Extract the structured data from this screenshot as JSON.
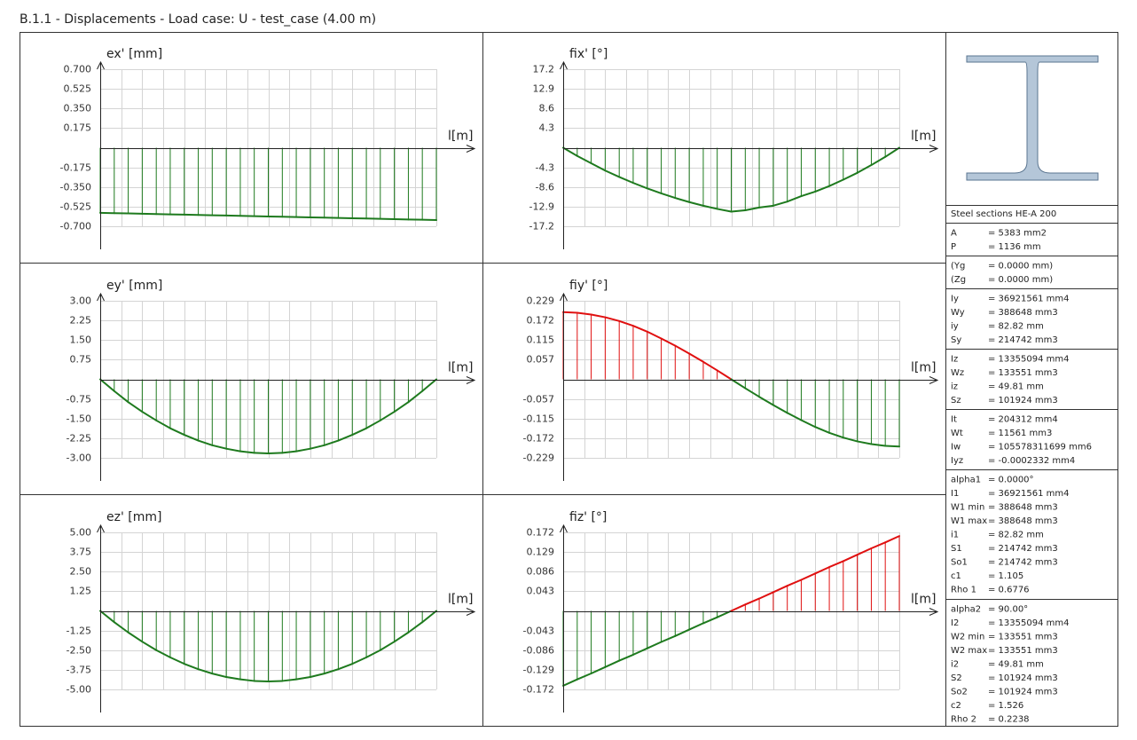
{
  "title": "B.1.1 - Displacements - Load case: U - test_case (4.00 m)",
  "chart_data": [
    {
      "type": "line",
      "y_label": "ex' [mm]",
      "x_label": "l[m]",
      "grid": true,
      "x": [
        0,
        0.167,
        0.333,
        0.5,
        0.667,
        0.833,
        1,
        1.167,
        1.333,
        1.5,
        1.667,
        1.833,
        2,
        2.167,
        2.333,
        2.5,
        2.667,
        2.833,
        3,
        3.167,
        3.333,
        3.5,
        3.667,
        3.833,
        4
      ],
      "xlim": [
        0,
        4
      ],
      "xticks": [
        0,
        0.25,
        0.5,
        0.75,
        1,
        1.25,
        1.5,
        1.75,
        2,
        2.25,
        2.5,
        2.75,
        3,
        3.25,
        3.5,
        3.75,
        4
      ],
      "ylim": [
        -0.7,
        0.7
      ],
      "yticks": [
        {
          "value": 0.7,
          "label": "0.700"
        },
        0.525,
        {
          "value": 0.35,
          "label": "0.350"
        },
        0.175,
        -0.175,
        {
          "value": -0.35,
          "label": "-0.350"
        },
        -0.525,
        {
          "value": -0.7,
          "label": "-0.700"
        }
      ],
      "series": [
        {
          "color": "#1e7a1e",
          "positive_color": "#e01010",
          "values": [
            -0.58,
            -0.583,
            -0.585,
            -0.588,
            -0.591,
            -0.594,
            -0.596,
            -0.599,
            -0.602,
            -0.604,
            -0.607,
            -0.61,
            -0.613,
            -0.615,
            -0.618,
            -0.621,
            -0.623,
            -0.626,
            -0.629,
            -0.631,
            -0.634,
            -0.637,
            -0.64,
            -0.642,
            -0.645
          ]
        }
      ]
    },
    {
      "type": "line",
      "y_label": "fix' [°]",
      "x_label": "l[m]",
      "grid": true,
      "x": [
        0,
        0.167,
        0.333,
        0.5,
        0.667,
        0.833,
        1,
        1.167,
        1.333,
        1.5,
        1.667,
        1.833,
        2,
        2.167,
        2.333,
        2.5,
        2.667,
        2.833,
        3,
        3.167,
        3.333,
        3.5,
        3.667,
        3.833,
        4
      ],
      "xlim": [
        0,
        4
      ],
      "xticks": [
        0,
        0.25,
        0.5,
        0.75,
        1,
        1.25,
        1.5,
        1.75,
        2,
        2.25,
        2.5,
        2.75,
        3,
        3.25,
        3.5,
        3.75,
        4
      ],
      "ylim": [
        -17.2,
        17.2
      ],
      "yticks": [
        17.2,
        12.9,
        8.6,
        4.3,
        -4.3,
        -8.6,
        -12.9,
        -17.2
      ],
      "series": [
        {
          "color": "#1e7a1e",
          "positive_color": "#e01010",
          "values": [
            0,
            -1.8,
            -3.4,
            -5.0,
            -6.4,
            -7.7,
            -8.9,
            -10.0,
            -11.0,
            -11.9,
            -12.7,
            -13.4,
            -14.0,
            -13.7,
            -13.1,
            -12.7,
            -11.8,
            -10.6,
            -9.6,
            -8.4,
            -7.0,
            -5.5,
            -3.8,
            -2.0,
            0
          ]
        }
      ]
    },
    {
      "type": "line",
      "y_label": "ey' [mm]",
      "x_label": "l[m]",
      "grid": true,
      "x": [
        0,
        0.167,
        0.333,
        0.5,
        0.667,
        0.833,
        1,
        1.167,
        1.333,
        1.5,
        1.667,
        1.833,
        2,
        2.167,
        2.333,
        2.5,
        2.667,
        2.833,
        3,
        3.167,
        3.333,
        3.5,
        3.667,
        3.833,
        4
      ],
      "xlim": [
        0,
        4
      ],
      "xticks": [
        0,
        0.25,
        0.5,
        0.75,
        1,
        1.25,
        1.5,
        1.75,
        2,
        2.25,
        2.5,
        2.75,
        3,
        3.25,
        3.5,
        3.75,
        4
      ],
      "ylim": [
        -3,
        3
      ],
      "yticks": [
        {
          "value": 3,
          "label": "3.00"
        },
        2.25,
        {
          "value": 1.5,
          "label": "1.50"
        },
        0.75,
        -0.75,
        {
          "value": -1.5,
          "label": "-1.50"
        },
        -2.25,
        {
          "value": -3,
          "label": "-3.00"
        }
      ],
      "series": [
        {
          "color": "#1e7a1e",
          "positive_color": "#e01010",
          "values": [
            0,
            -0.45,
            -0.87,
            -1.24,
            -1.57,
            -1.87,
            -2.12,
            -2.34,
            -2.52,
            -2.65,
            -2.75,
            -2.81,
            -2.83,
            -2.81,
            -2.75,
            -2.65,
            -2.52,
            -2.34,
            -2.12,
            -1.87,
            -1.57,
            -1.24,
            -0.87,
            -0.45,
            0
          ]
        }
      ]
    },
    {
      "type": "line",
      "y_label": "fiy' [°]",
      "x_label": "l[m]",
      "grid": true,
      "x": [
        0,
        0.167,
        0.333,
        0.5,
        0.667,
        0.833,
        1,
        1.167,
        1.333,
        1.5,
        1.667,
        1.833,
        2,
        2.167,
        2.333,
        2.5,
        2.667,
        2.833,
        3,
        3.167,
        3.333,
        3.5,
        3.667,
        3.833,
        4
      ],
      "xlim": [
        0,
        4
      ],
      "xticks": [
        0,
        0.25,
        0.5,
        0.75,
        1,
        1.25,
        1.5,
        1.75,
        2,
        2.25,
        2.5,
        2.75,
        3,
        3.25,
        3.5,
        3.75,
        4
      ],
      "ylim": [
        -0.229,
        0.229
      ],
      "yticks": [
        0.229,
        0.172,
        0.115,
        0.057,
        -0.057,
        -0.115,
        -0.172,
        -0.229
      ],
      "series": [
        {
          "color": "#1e7a1e",
          "positive_color": "#e01010",
          "values": [
            0.196,
            0.194,
            0.189,
            0.181,
            0.17,
            0.156,
            0.139,
            0.119,
            0.098,
            0.075,
            0.051,
            0.026,
            0,
            -0.026,
            -0.051,
            -0.075,
            -0.098,
            -0.119,
            -0.139,
            -0.156,
            -0.17,
            -0.181,
            -0.189,
            -0.194,
            -0.196
          ]
        }
      ]
    },
    {
      "type": "line",
      "y_label": "ez' [mm]",
      "x_label": "l[m]",
      "grid": true,
      "x": [
        0,
        0.167,
        0.333,
        0.5,
        0.667,
        0.833,
        1,
        1.167,
        1.333,
        1.5,
        1.667,
        1.833,
        2,
        2.167,
        2.333,
        2.5,
        2.667,
        2.833,
        3,
        3.167,
        3.333,
        3.5,
        3.667,
        3.833,
        4
      ],
      "xlim": [
        0,
        4
      ],
      "xticks": [
        0,
        0.25,
        0.5,
        0.75,
        1,
        1.25,
        1.5,
        1.75,
        2,
        2.25,
        2.5,
        2.75,
        3,
        3.25,
        3.5,
        3.75,
        4
      ],
      "ylim": [
        -5,
        5
      ],
      "yticks": [
        {
          "value": 5,
          "label": "5.00"
        },
        3.75,
        {
          "value": 2.5,
          "label": "2.50"
        },
        1.25,
        -1.25,
        {
          "value": -2.5,
          "label": "-2.50"
        },
        -3.75,
        {
          "value": -5,
          "label": "-5.00"
        }
      ],
      "series": [
        {
          "color": "#1e7a1e",
          "positive_color": "#e01010",
          "values": [
            0,
            -0.72,
            -1.37,
            -1.96,
            -2.5,
            -2.96,
            -3.37,
            -3.71,
            -3.99,
            -4.21,
            -4.36,
            -4.46,
            -4.49,
            -4.46,
            -4.36,
            -4.21,
            -3.99,
            -3.71,
            -3.37,
            -2.96,
            -2.5,
            -1.96,
            -1.37,
            -0.72,
            0
          ]
        }
      ]
    },
    {
      "type": "line",
      "y_label": "fiz' [°]",
      "x_label": "l[m]",
      "grid": true,
      "x": [
        0,
        0.167,
        0.333,
        0.5,
        0.667,
        0.833,
        1,
        1.167,
        1.333,
        1.5,
        1.667,
        1.833,
        2,
        2.167,
        2.333,
        2.5,
        2.667,
        2.833,
        3,
        3.167,
        3.333,
        3.5,
        3.667,
        3.833,
        4
      ],
      "xlim": [
        0,
        4
      ],
      "xticks": [
        0,
        0.25,
        0.5,
        0.75,
        1,
        1.25,
        1.5,
        1.75,
        2,
        2.25,
        2.5,
        2.75,
        3,
        3.25,
        3.5,
        3.75,
        4
      ],
      "ylim": [
        -0.172,
        0.172
      ],
      "yticks": [
        0.172,
        0.129,
        0.086,
        0.043,
        -0.043,
        -0.086,
        -0.129,
        -0.172
      ],
      "series": [
        {
          "color": "#1e7a1e",
          "positive_color": "#e01010",
          "values": [
            -0.164,
            -0.15,
            -0.137,
            -0.123,
            -0.109,
            -0.096,
            -0.082,
            -0.068,
            -0.055,
            -0.041,
            -0.027,
            -0.014,
            0,
            0.014,
            0.027,
            0.041,
            0.055,
            0.068,
            0.082,
            0.096,
            0.109,
            0.123,
            0.137,
            0.15,
            0.164
          ]
        }
      ]
    }
  ],
  "section": {
    "title": "Steel sections HE-A 200",
    "groups": [
      [
        [
          "A",
          "= 5383 mm2"
        ],
        [
          "P",
          "= 1136 mm"
        ]
      ],
      [
        [
          "(Yg",
          "= 0.0000 mm)"
        ],
        [
          "(Zg",
          "= 0.0000 mm)"
        ]
      ],
      [
        [
          "Iy",
          "= 36921561 mm4"
        ],
        [
          "Wy",
          "= 388648 mm3"
        ],
        [
          "iy",
          "= 82.82 mm"
        ],
        [
          "Sy",
          "= 214742 mm3"
        ]
      ],
      [
        [
          "Iz",
          "= 13355094 mm4"
        ],
        [
          "Wz",
          "= 133551 mm3"
        ],
        [
          "iz",
          "= 49.81 mm"
        ],
        [
          "Sz",
          "= 101924 mm3"
        ]
      ],
      [
        [
          "It",
          "= 204312 mm4"
        ],
        [
          "Wt",
          "= 11561 mm3"
        ],
        [
          "Iw",
          "= 105578311699 mm6"
        ],
        [
          "Iyz",
          "= -0.0002332 mm4"
        ]
      ],
      [
        [
          "alpha1",
          "= 0.0000°"
        ],
        [
          "I1",
          "= 36921561 mm4"
        ],
        [
          "W1 min",
          "= 388648 mm3"
        ],
        [
          "W1 max",
          "= 388648 mm3"
        ],
        [
          "i1",
          "= 82.82 mm"
        ],
        [
          "S1",
          "= 214742 mm3"
        ],
        [
          "So1",
          "= 214742 mm3"
        ],
        [
          "c1",
          "= 1.105"
        ],
        [
          "Rho 1",
          "= 0.6776"
        ]
      ],
      [
        [
          "alpha2",
          "= 90.00°"
        ],
        [
          "I2",
          "= 13355094 mm4"
        ],
        [
          "W2 min",
          "= 133551 mm3"
        ],
        [
          "W2 max",
          "= 133551 mm3"
        ],
        [
          "i2",
          "= 49.81 mm"
        ],
        [
          "S2",
          "= 101924 mm3"
        ],
        [
          "So2",
          "= 101924 mm3"
        ],
        [
          "c2",
          "= 1.526"
        ],
        [
          "Rho 2",
          "= 0.2238"
        ]
      ]
    ]
  }
}
